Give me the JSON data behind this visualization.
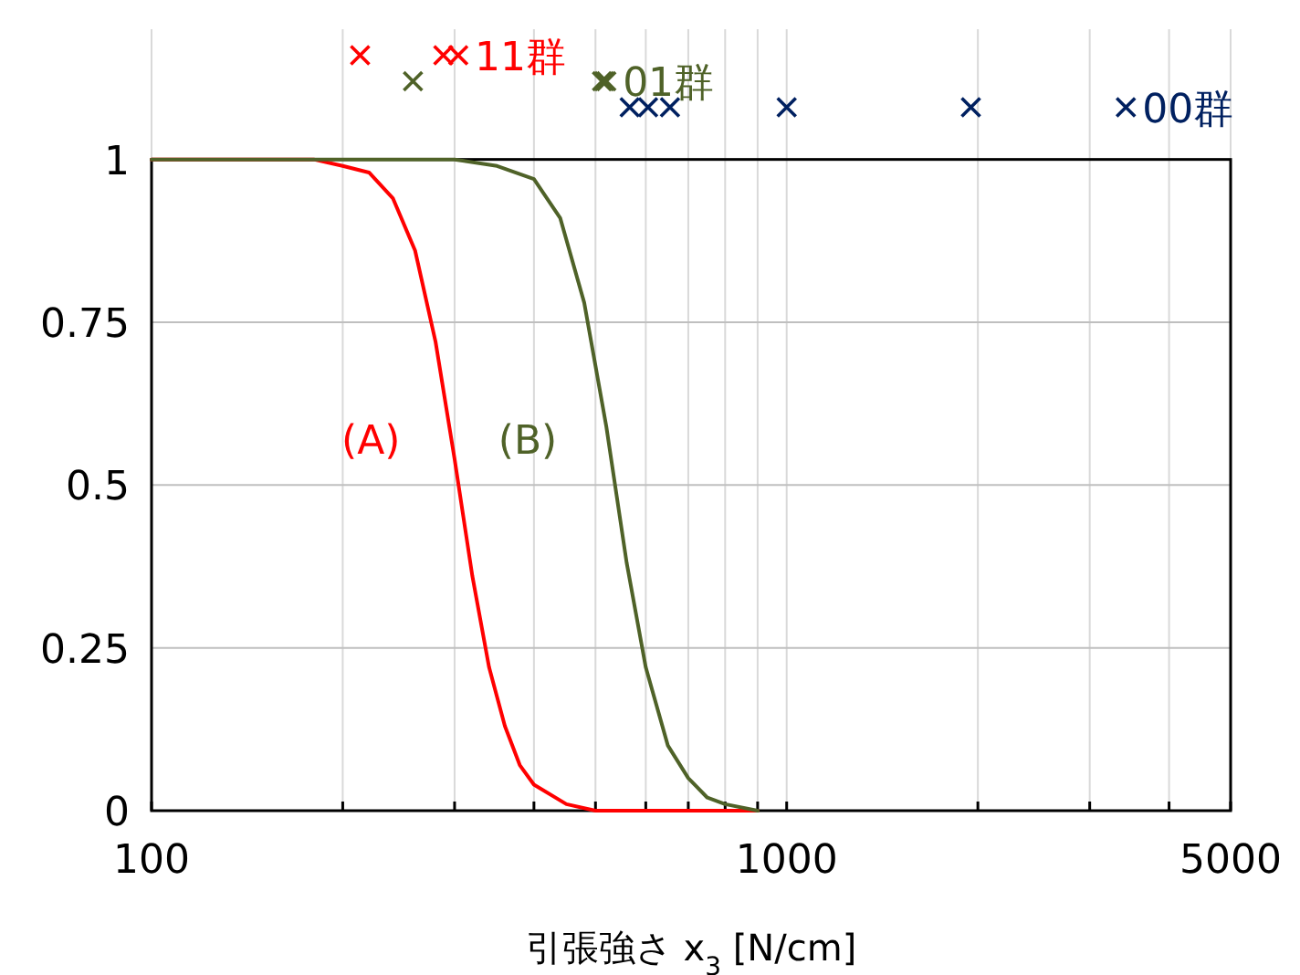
{
  "chart_data": {
    "type": "line",
    "xlabel": "引張強さ x$_{3}$ [N/cm]",
    "log": "x",
    "grid": true,
    "legend": false,
    "marker": "none",
    "xlim": [
      100,
      5000
    ],
    "ylim": [
      0,
      1.2
    ],
    "xticks": [
      100,
      {
        "value": 200,
        "label": null
      },
      {
        "value": 300,
        "label": null
      },
      {
        "value": 400,
        "label": null
      },
      {
        "value": 500,
        "label": null
      },
      {
        "value": 600,
        "label": null
      },
      {
        "value": 700,
        "label": null
      },
      {
        "value": 800,
        "label": null
      },
      {
        "value": 900,
        "label": null
      },
      1000,
      {
        "value": 2000,
        "label": null
      },
      {
        "value": 3000,
        "label": null
      },
      {
        "value": 4000,
        "label": null
      },
      5000
    ],
    "yticks": [
      0,
      0.25,
      0.5,
      0.75,
      1
    ],
    "series": [
      {
        "name": "(A)",
        "color": "#ff0000",
        "x": [
          100,
          150,
          180,
          200,
          220,
          240,
          260,
          280,
          300,
          320,
          340,
          360,
          380,
          400,
          450,
          500,
          900
        ],
        "values": [
          1,
          1,
          1,
          0.99,
          0.98,
          0.94,
          0.86,
          0.72,
          0.54,
          0.36,
          0.22,
          0.13,
          0.07,
          0.04,
          0.01,
          0,
          0
        ]
      },
      {
        "name": "(B)",
        "color": "#4f6228",
        "x": [
          100,
          300,
          350,
          400,
          440,
          480,
          520,
          560,
          600,
          650,
          700,
          750,
          800,
          900
        ],
        "values": [
          1,
          1,
          0.99,
          0.97,
          0.91,
          0.78,
          0.59,
          0.38,
          0.22,
          0.1,
          0.05,
          0.02,
          0.01,
          0
        ]
      },
      {
        "name": "11群",
        "type": "scatter",
        "marker": "cross",
        "color": "#ff0000",
        "x": [
          213,
          288,
          304
        ],
        "values": [
          1.16,
          1.16,
          1.16
        ]
      },
      {
        "name": "01群",
        "type": "scatter",
        "marker": "cross",
        "color": "#4f6228",
        "x": [
          258,
          512,
          516,
          520
        ],
        "values": [
          1.12,
          1.12,
          1.12,
          1.12
        ]
      },
      {
        "name": "00群",
        "type": "scatter",
        "marker": "cross",
        "color": "#002060",
        "x": [
          566,
          605,
          655,
          1000,
          1950,
          3420
        ],
        "values": [
          1.08,
          1.08,
          1.08,
          1.08,
          1.08,
          1.08
        ]
      }
    ]
  }
}
